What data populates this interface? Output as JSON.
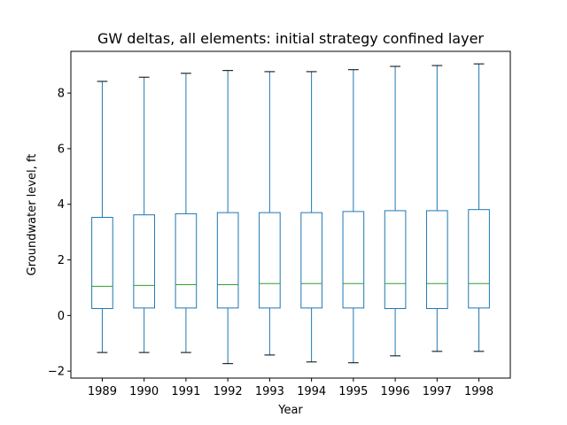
{
  "chart_data": {
    "type": "box",
    "title": "GW deltas, all elements: initial strategy confined layer",
    "xlabel": "Year",
    "ylabel": "Groundwater level, ft",
    "ylim": [
      -2.25,
      9.5
    ],
    "yticks": [
      -2,
      0,
      2,
      4,
      6,
      8
    ],
    "grid": false,
    "colors": {
      "box": "#1f77b4",
      "median": "#2ca02c",
      "whisker": "#1f77b4",
      "cap": "#000000"
    },
    "categories": [
      "1989",
      "1990",
      "1991",
      "1992",
      "1993",
      "1994",
      "1995",
      "1996",
      "1997",
      "1998"
    ],
    "boxes": [
      {
        "category": "1989",
        "whisker_low": -1.33,
        "q1": 0.25,
        "median": 1.05,
        "q3": 3.53,
        "whisker_high": 8.42
      },
      {
        "category": "1990",
        "whisker_low": -1.33,
        "q1": 0.27,
        "median": 1.08,
        "q3": 3.62,
        "whisker_high": 8.57
      },
      {
        "category": "1991",
        "whisker_low": -1.33,
        "q1": 0.27,
        "median": 1.11,
        "q3": 3.66,
        "whisker_high": 8.71
      },
      {
        "category": "1992",
        "whisker_low": -1.73,
        "q1": 0.27,
        "median": 1.11,
        "q3": 3.7,
        "whisker_high": 8.81
      },
      {
        "category": "1993",
        "whisker_low": -1.42,
        "q1": 0.27,
        "median": 1.15,
        "q3": 3.7,
        "whisker_high": 8.77
      },
      {
        "category": "1994",
        "whisker_low": -1.67,
        "q1": 0.27,
        "median": 1.15,
        "q3": 3.7,
        "whisker_high": 8.77
      },
      {
        "category": "1995",
        "whisker_low": -1.7,
        "q1": 0.27,
        "median": 1.15,
        "q3": 3.74,
        "whisker_high": 8.84
      },
      {
        "category": "1996",
        "whisker_low": -1.45,
        "q1": 0.25,
        "median": 1.15,
        "q3": 3.77,
        "whisker_high": 8.96
      },
      {
        "category": "1997",
        "whisker_low": -1.29,
        "q1": 0.25,
        "median": 1.15,
        "q3": 3.77,
        "whisker_high": 8.99
      },
      {
        "category": "1998",
        "whisker_low": -1.29,
        "q1": 0.27,
        "median": 1.15,
        "q3": 3.81,
        "whisker_high": 9.05
      }
    ]
  }
}
